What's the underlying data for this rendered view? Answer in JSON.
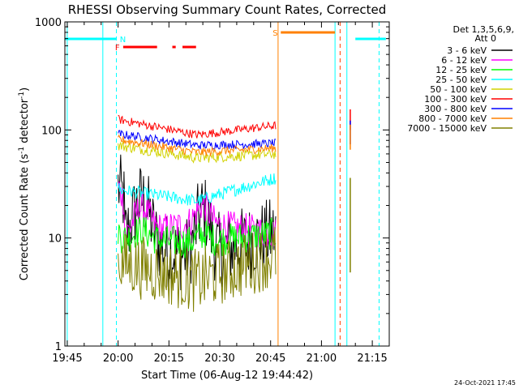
{
  "chart_data": {
    "type": "line",
    "title": "RHESSI Observing Summary Count Rates, Corrected",
    "xlabel": "Start Time (06-Aug-12 19:44:42)",
    "ylabel_main": "Corrected Count Rate (s",
    "ylabel_sup1": "-1",
    "ylabel_mid": " detector",
    "ylabel_sup2": "-1",
    "ylabel_end": ")",
    "y_scale": "log",
    "ylim": [
      1,
      1000
    ],
    "xlim_minutes": [
      -0.7,
      95
    ],
    "x_ticks": [
      {
        "m": 0,
        "label": "19:45"
      },
      {
        "m": 15,
        "label": "20:00"
      },
      {
        "m": 30,
        "label": "20:15"
      },
      {
        "m": 45,
        "label": "20:30"
      },
      {
        "m": 60,
        "label": "20:45"
      },
      {
        "m": 75,
        "label": "21:00"
      },
      {
        "m": 90,
        "label": "21:15"
      }
    ],
    "y_ticks": [
      {
        "v": 1,
        "label": "1"
      },
      {
        "v": 10,
        "label": "10"
      },
      {
        "v": 100,
        "label": "100"
      },
      {
        "v": 1000,
        "label": "1000"
      }
    ],
    "legend_header": [
      "Det 1,3,5,6,9,",
      "Att 0"
    ],
    "legend_position": "right",
    "series": [
      {
        "name": "3 - 6 keV",
        "color": "#000000",
        "start": 10,
        "end": 11,
        "mid": 6.5,
        "noise": 0.35,
        "bump": 14,
        "peak": 30
      },
      {
        "name": "6 - 12 keV",
        "color": "#ff00ff",
        "start": 10,
        "end": 11,
        "mid": 14,
        "noise": 0.15,
        "bump": 8,
        "peak": 30
      },
      {
        "name": "12 - 25 keV",
        "color": "#00ff00",
        "start": 10,
        "end": 11,
        "mid": 9,
        "noise": 0.15,
        "bump": 2,
        "peak": 12
      },
      {
        "name": "25 - 50 keV",
        "color": "#00ffff",
        "start": 28,
        "end": 36,
        "mid": 22,
        "noise": 0.06,
        "bump": 0,
        "peak": 30
      },
      {
        "name": "50 - 100 keV",
        "color": "#d2d200",
        "start": 72,
        "end": 60,
        "mid": 55,
        "noise": 0.05,
        "bump": 0,
        "peak": 72
      },
      {
        "name": "100 - 300 keV",
        "color": "#ff0000",
        "start": 125,
        "end": 110,
        "mid": 90,
        "noise": 0.04,
        "bump": 0,
        "peak": 125
      },
      {
        "name": "300 - 800 keV",
        "color": "#0000ff",
        "start": 92,
        "end": 75,
        "mid": 72,
        "noise": 0.04,
        "bump": 0,
        "peak": 92
      },
      {
        "name": "800 - 7000 keV",
        "color": "#ff8000",
        "start": 82,
        "end": 68,
        "mid": 62,
        "noise": 0.04,
        "bump": 0,
        "peak": 82
      },
      {
        "name": "7000 - 15000 keV",
        "color": "#808000",
        "start": 6,
        "end": 7,
        "mid": 4,
        "noise": 0.3,
        "bump": 0,
        "peak": 6
      }
    ],
    "data_window_minutes": [
      15.0,
      61.5
    ],
    "flags": [
      {
        "label": "N",
        "color": "#00ffff",
        "segments": [
          [
            -0.7,
            14.5
          ],
          [
            85,
            94
          ]
        ]
      },
      {
        "label": "F",
        "color": "#ff0000",
        "segments": [
          [
            16.5,
            26.5
          ],
          [
            31,
            32
          ],
          [
            34,
            38
          ]
        ]
      },
      {
        "label": "S",
        "color": "#ff8000",
        "segments": [
          [
            63,
            79
          ]
        ]
      }
    ],
    "markers": [
      {
        "m": 0,
        "color": "#00ffff",
        "style": "solid"
      },
      {
        "m": 10.5,
        "color": "#00ffff",
        "style": "solid"
      },
      {
        "m": 14.5,
        "color": "#00ffff",
        "style": "dashed"
      },
      {
        "m": 62.2,
        "color": "#ff8000",
        "style": "solid"
      },
      {
        "m": 79,
        "color": "#00ffff",
        "style": "solid"
      },
      {
        "m": 80.5,
        "color": "#ff4000",
        "style": "dashed"
      },
      {
        "m": 82.5,
        "color": "#00ffff",
        "style": "solid"
      },
      {
        "m": 92,
        "color": "#00ffff",
        "style": "dashed"
      }
    ],
    "footer_timestamp": "24-Oct-2021 17:45"
  }
}
